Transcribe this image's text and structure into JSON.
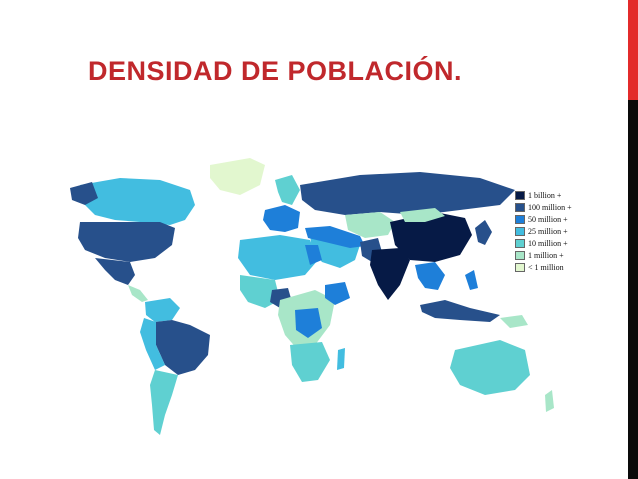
{
  "slide": {
    "title": "DENSIDAD DE POBLACIÓN.",
    "title_color": "#c0282c",
    "accent_red": "#e32b2b",
    "accent_black": "#0a0a0a"
  },
  "map": {
    "legend": [
      {
        "label": "1 billion +",
        "color": "#061a46"
      },
      {
        "label": "100 million +",
        "color": "#27508b"
      },
      {
        "label": "50 million +",
        "color": "#1e7fd9"
      },
      {
        "label": "25 million +",
        "color": "#42bde0"
      },
      {
        "label": "10 million +",
        "color": "#5fd0d1"
      },
      {
        "label": "1 million +",
        "color": "#a8e6c8"
      },
      {
        "label": "< 1 million",
        "color": "#e2f7cf"
      }
    ]
  }
}
